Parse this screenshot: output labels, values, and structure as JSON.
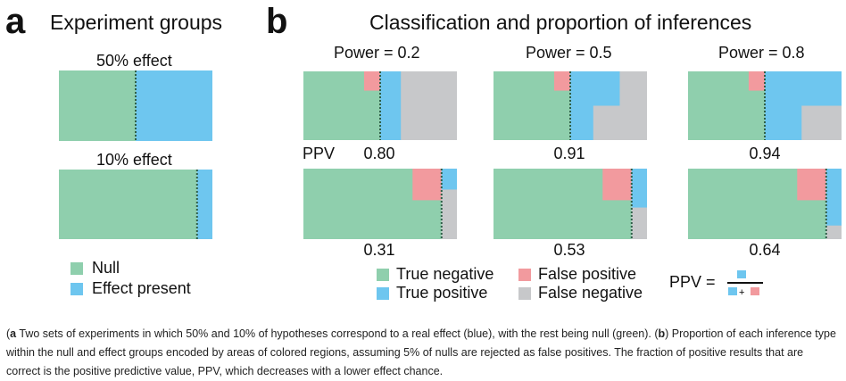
{
  "colors": {
    "null_true_negative": "#8fcfad",
    "effect_true_positive": "#6ec6ef",
    "false_positive": "#f29a9e",
    "false_negative": "#c7c8ca",
    "divider": "#2f5f49"
  },
  "panel_a": {
    "letter": "a",
    "title": "Experiment groups",
    "groups": [
      {
        "label": "50% effect",
        "effect_fraction": 0.5
      },
      {
        "label": "10% effect",
        "effect_fraction": 0.1
      }
    ],
    "legend": [
      {
        "label": "Null",
        "color_key": "null_true_negative"
      },
      {
        "label": "Effect present",
        "color_key": "effect_true_positive"
      }
    ]
  },
  "panel_b": {
    "letter": "b",
    "title": "Classification and proportion of inferences",
    "ppv_label": "PPV",
    "false_positive_rate": 0.05,
    "powers": [
      {
        "label": "Power = 0.2",
        "power": 0.2,
        "ppv_50": "0.80",
        "ppv_10": "0.31"
      },
      {
        "label": "Power = 0.5",
        "power": 0.5,
        "ppv_50": "0.91",
        "ppv_10": "0.53"
      },
      {
        "label": "Power = 0.8",
        "power": 0.8,
        "ppv_50": "0.94",
        "ppv_10": "0.64"
      }
    ],
    "legend": [
      {
        "label": "True negative",
        "color_key": "null_true_negative"
      },
      {
        "label": "True positive",
        "color_key": "effect_true_positive"
      },
      {
        "label": "False positive",
        "color_key": "false_positive"
      },
      {
        "label": "False negative",
        "color_key": "false_negative"
      }
    ],
    "formula": {
      "lhs": "PPV =",
      "plus": "+"
    }
  },
  "caption": {
    "a_letter": "a",
    "a_text": " Two sets of experiments in which 50% and 10% of hypotheses correspond to a real effect (blue), with the rest being null (green). (",
    "b_letter": "b",
    "b_text": ") Proportion of each inference type within the null and effect groups encoded by areas of colored regions, assuming 5% of nulls are rejected as false positives. The fraction of positive results that are correct is the positive predictive value, PPV, which decreases with a lower effect chance.",
    "open_paren": "("
  }
}
